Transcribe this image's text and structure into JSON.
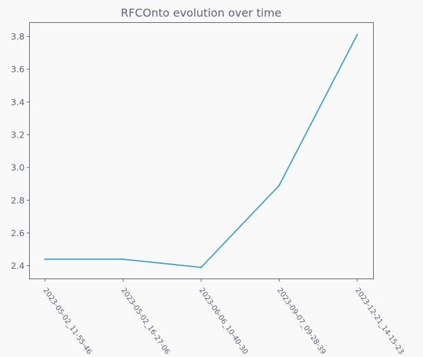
{
  "chart_data": {
    "type": "line",
    "title": "RFCOnto evolution over time",
    "xlabel": "",
    "ylabel": "",
    "categories": [
      "2023-05-02_11-55-46",
      "2023-05-02_16-27-06",
      "2023-06-06_10-40-30",
      "2023-09-07_09-28-39",
      "2023-12-21_14-15-23"
    ],
    "series": [
      {
        "values": [
          2.44,
          2.44,
          2.39,
          2.89,
          3.81
        ]
      }
    ],
    "yticks": [
      "2.4",
      "2.6",
      "2.8",
      "3.0",
      "3.2",
      "3.4",
      "3.6",
      "3.8"
    ],
    "ylim": [
      2.32,
      3.885
    ],
    "grid": false,
    "colors": {
      "line": "#3aa2d4",
      "axes": "#5d6472",
      "background": "#f9f9f9"
    }
  }
}
